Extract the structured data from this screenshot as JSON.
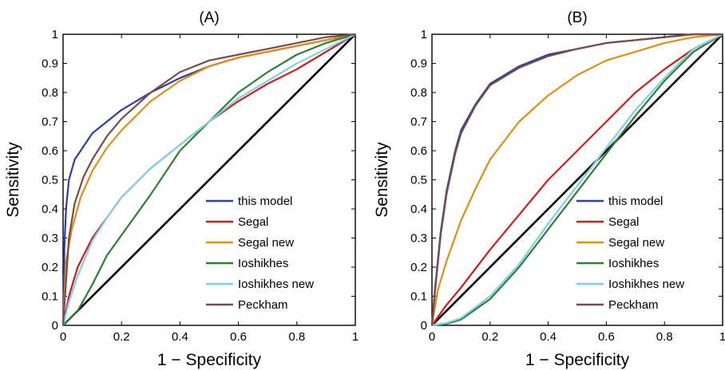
{
  "chart_data": [
    {
      "type": "line",
      "title": "(A)",
      "xlabel": "1 − Specificity",
      "ylabel": "Sensitivity",
      "xlim": [
        0,
        1
      ],
      "ylim": [
        0,
        1
      ],
      "xticks": [
        "0",
        "0.2",
        "0.4",
        "0.6",
        "0.8",
        "1"
      ],
      "yticks": [
        "0",
        "0.1",
        "0.2",
        "0.3",
        "0.4",
        "0.5",
        "0.6",
        "0.7",
        "0.8",
        "0.9",
        "1"
      ],
      "grid": false,
      "legend_position": "bottom-right",
      "diagonal": {
        "x": [
          0,
          1
        ],
        "y": [
          0,
          1
        ],
        "color": "#000000"
      },
      "series": [
        {
          "name": "this model",
          "color": "#2b3ea8",
          "x": [
            0,
            0.005,
            0.01,
            0.02,
            0.04,
            0.06,
            0.1,
            0.15,
            0.2,
            0.3,
            0.4,
            0.5,
            0.6,
            0.7,
            0.8,
            0.9,
            1
          ],
          "y": [
            0,
            0.28,
            0.4,
            0.5,
            0.57,
            0.6,
            0.66,
            0.7,
            0.74,
            0.8,
            0.85,
            0.89,
            0.92,
            0.94,
            0.96,
            0.98,
            1
          ]
        },
        {
          "name": "Segal",
          "color": "#d11a1a",
          "x": [
            0,
            0.02,
            0.05,
            0.1,
            0.15,
            0.2,
            0.3,
            0.4,
            0.5,
            0.6,
            0.7,
            0.8,
            0.9,
            1
          ],
          "y": [
            0,
            0.1,
            0.2,
            0.3,
            0.37,
            0.44,
            0.54,
            0.62,
            0.7,
            0.77,
            0.83,
            0.88,
            0.94,
            1
          ]
        },
        {
          "name": "Segal new",
          "color": "#dd8f13",
          "x": [
            0,
            0.01,
            0.03,
            0.06,
            0.1,
            0.15,
            0.2,
            0.3,
            0.4,
            0.5,
            0.6,
            0.7,
            0.8,
            0.9,
            1
          ],
          "y": [
            0,
            0.22,
            0.33,
            0.44,
            0.53,
            0.61,
            0.67,
            0.77,
            0.84,
            0.89,
            0.92,
            0.94,
            0.96,
            0.98,
            1
          ]
        },
        {
          "name": "Ioshikhes",
          "color": "#2e7d32",
          "x": [
            0,
            0.05,
            0.1,
            0.15,
            0.2,
            0.3,
            0.4,
            0.5,
            0.6,
            0.7,
            0.8,
            0.9,
            1
          ],
          "y": [
            0,
            0.05,
            0.14,
            0.24,
            0.31,
            0.45,
            0.6,
            0.7,
            0.8,
            0.87,
            0.93,
            0.97,
            1
          ]
        },
        {
          "name": "Ioshikhes new",
          "color": "#7ed0e8",
          "x": [
            0,
            0.02,
            0.05,
            0.1,
            0.15,
            0.2,
            0.3,
            0.4,
            0.5,
            0.6,
            0.7,
            0.8,
            0.9,
            1
          ],
          "y": [
            0,
            0.08,
            0.17,
            0.29,
            0.37,
            0.44,
            0.54,
            0.62,
            0.7,
            0.78,
            0.84,
            0.9,
            0.95,
            1
          ]
        },
        {
          "name": "Peckham",
          "color": "#7b4a4a",
          "x": [
            0,
            0.01,
            0.02,
            0.04,
            0.07,
            0.1,
            0.15,
            0.2,
            0.3,
            0.4,
            0.5,
            0.6,
            0.7,
            0.8,
            0.9,
            1
          ],
          "y": [
            0,
            0.15,
            0.3,
            0.42,
            0.51,
            0.57,
            0.65,
            0.71,
            0.8,
            0.87,
            0.91,
            0.93,
            0.95,
            0.97,
            0.99,
            1
          ]
        }
      ]
    },
    {
      "type": "line",
      "title": "(B)",
      "xlabel": "1 − Specificity",
      "ylabel": "Sensitivity",
      "xlim": [
        0,
        1
      ],
      "ylim": [
        0,
        1
      ],
      "xticks": [
        "0",
        "0.2",
        "0.4",
        "0.6",
        "0.8",
        "1"
      ],
      "yticks": [
        "0",
        "0.1",
        "0.2",
        "0.3",
        "0.4",
        "0.5",
        "0.6",
        "0.7",
        "0.8",
        "0.9",
        "1"
      ],
      "grid": false,
      "legend_position": "bottom-right",
      "diagonal": {
        "x": [
          0,
          1
        ],
        "y": [
          0,
          1
        ],
        "color": "#000000"
      },
      "series": [
        {
          "name": "this model",
          "color": "#2b3ea8",
          "x": [
            0,
            0.01,
            0.03,
            0.05,
            0.08,
            0.1,
            0.15,
            0.2,
            0.3,
            0.4,
            0.5,
            0.6,
            0.7,
            0.8,
            0.9,
            1
          ],
          "y": [
            0,
            0.12,
            0.32,
            0.46,
            0.6,
            0.67,
            0.76,
            0.83,
            0.89,
            0.93,
            0.95,
            0.97,
            0.98,
            0.99,
            1,
            1
          ]
        },
        {
          "name": "Segal",
          "color": "#d11a1a",
          "x": [
            0,
            0.05,
            0.1,
            0.2,
            0.3,
            0.4,
            0.5,
            0.6,
            0.7,
            0.8,
            0.9,
            1
          ],
          "y": [
            0,
            0.07,
            0.13,
            0.26,
            0.38,
            0.5,
            0.6,
            0.7,
            0.8,
            0.88,
            0.95,
            1
          ]
        },
        {
          "name": "Segal new",
          "color": "#dd8f13",
          "x": [
            0,
            0.02,
            0.05,
            0.1,
            0.15,
            0.2,
            0.3,
            0.4,
            0.5,
            0.6,
            0.7,
            0.8,
            0.9,
            1
          ],
          "y": [
            0,
            0.12,
            0.22,
            0.36,
            0.47,
            0.57,
            0.7,
            0.79,
            0.86,
            0.91,
            0.94,
            0.97,
            0.99,
            1
          ]
        },
        {
          "name": "Ioshikhes",
          "color": "#2e7d32",
          "x": [
            0,
            0.05,
            0.1,
            0.2,
            0.3,
            0.4,
            0.5,
            0.6,
            0.7,
            0.8,
            0.9,
            1
          ],
          "y": [
            0,
            0.005,
            0.02,
            0.09,
            0.2,
            0.33,
            0.46,
            0.59,
            0.72,
            0.84,
            0.94,
            1
          ]
        },
        {
          "name": "Ioshikhes new",
          "color": "#7ed0e8",
          "x": [
            0,
            0.05,
            0.1,
            0.2,
            0.3,
            0.4,
            0.5,
            0.6,
            0.7,
            0.8,
            0.9,
            1
          ],
          "y": [
            0,
            0.008,
            0.025,
            0.1,
            0.21,
            0.35,
            0.48,
            0.61,
            0.74,
            0.85,
            0.95,
            1
          ]
        },
        {
          "name": "Peckham",
          "color": "#7b4a4a",
          "x": [
            0,
            0.01,
            0.03,
            0.05,
            0.08,
            0.1,
            0.15,
            0.2,
            0.3,
            0.4,
            0.5,
            0.6,
            0.7,
            0.8,
            0.9,
            1
          ],
          "y": [
            0,
            0.11,
            0.31,
            0.45,
            0.59,
            0.66,
            0.755,
            0.825,
            0.885,
            0.925,
            0.95,
            0.97,
            0.98,
            0.99,
            1,
            1
          ]
        }
      ]
    }
  ]
}
